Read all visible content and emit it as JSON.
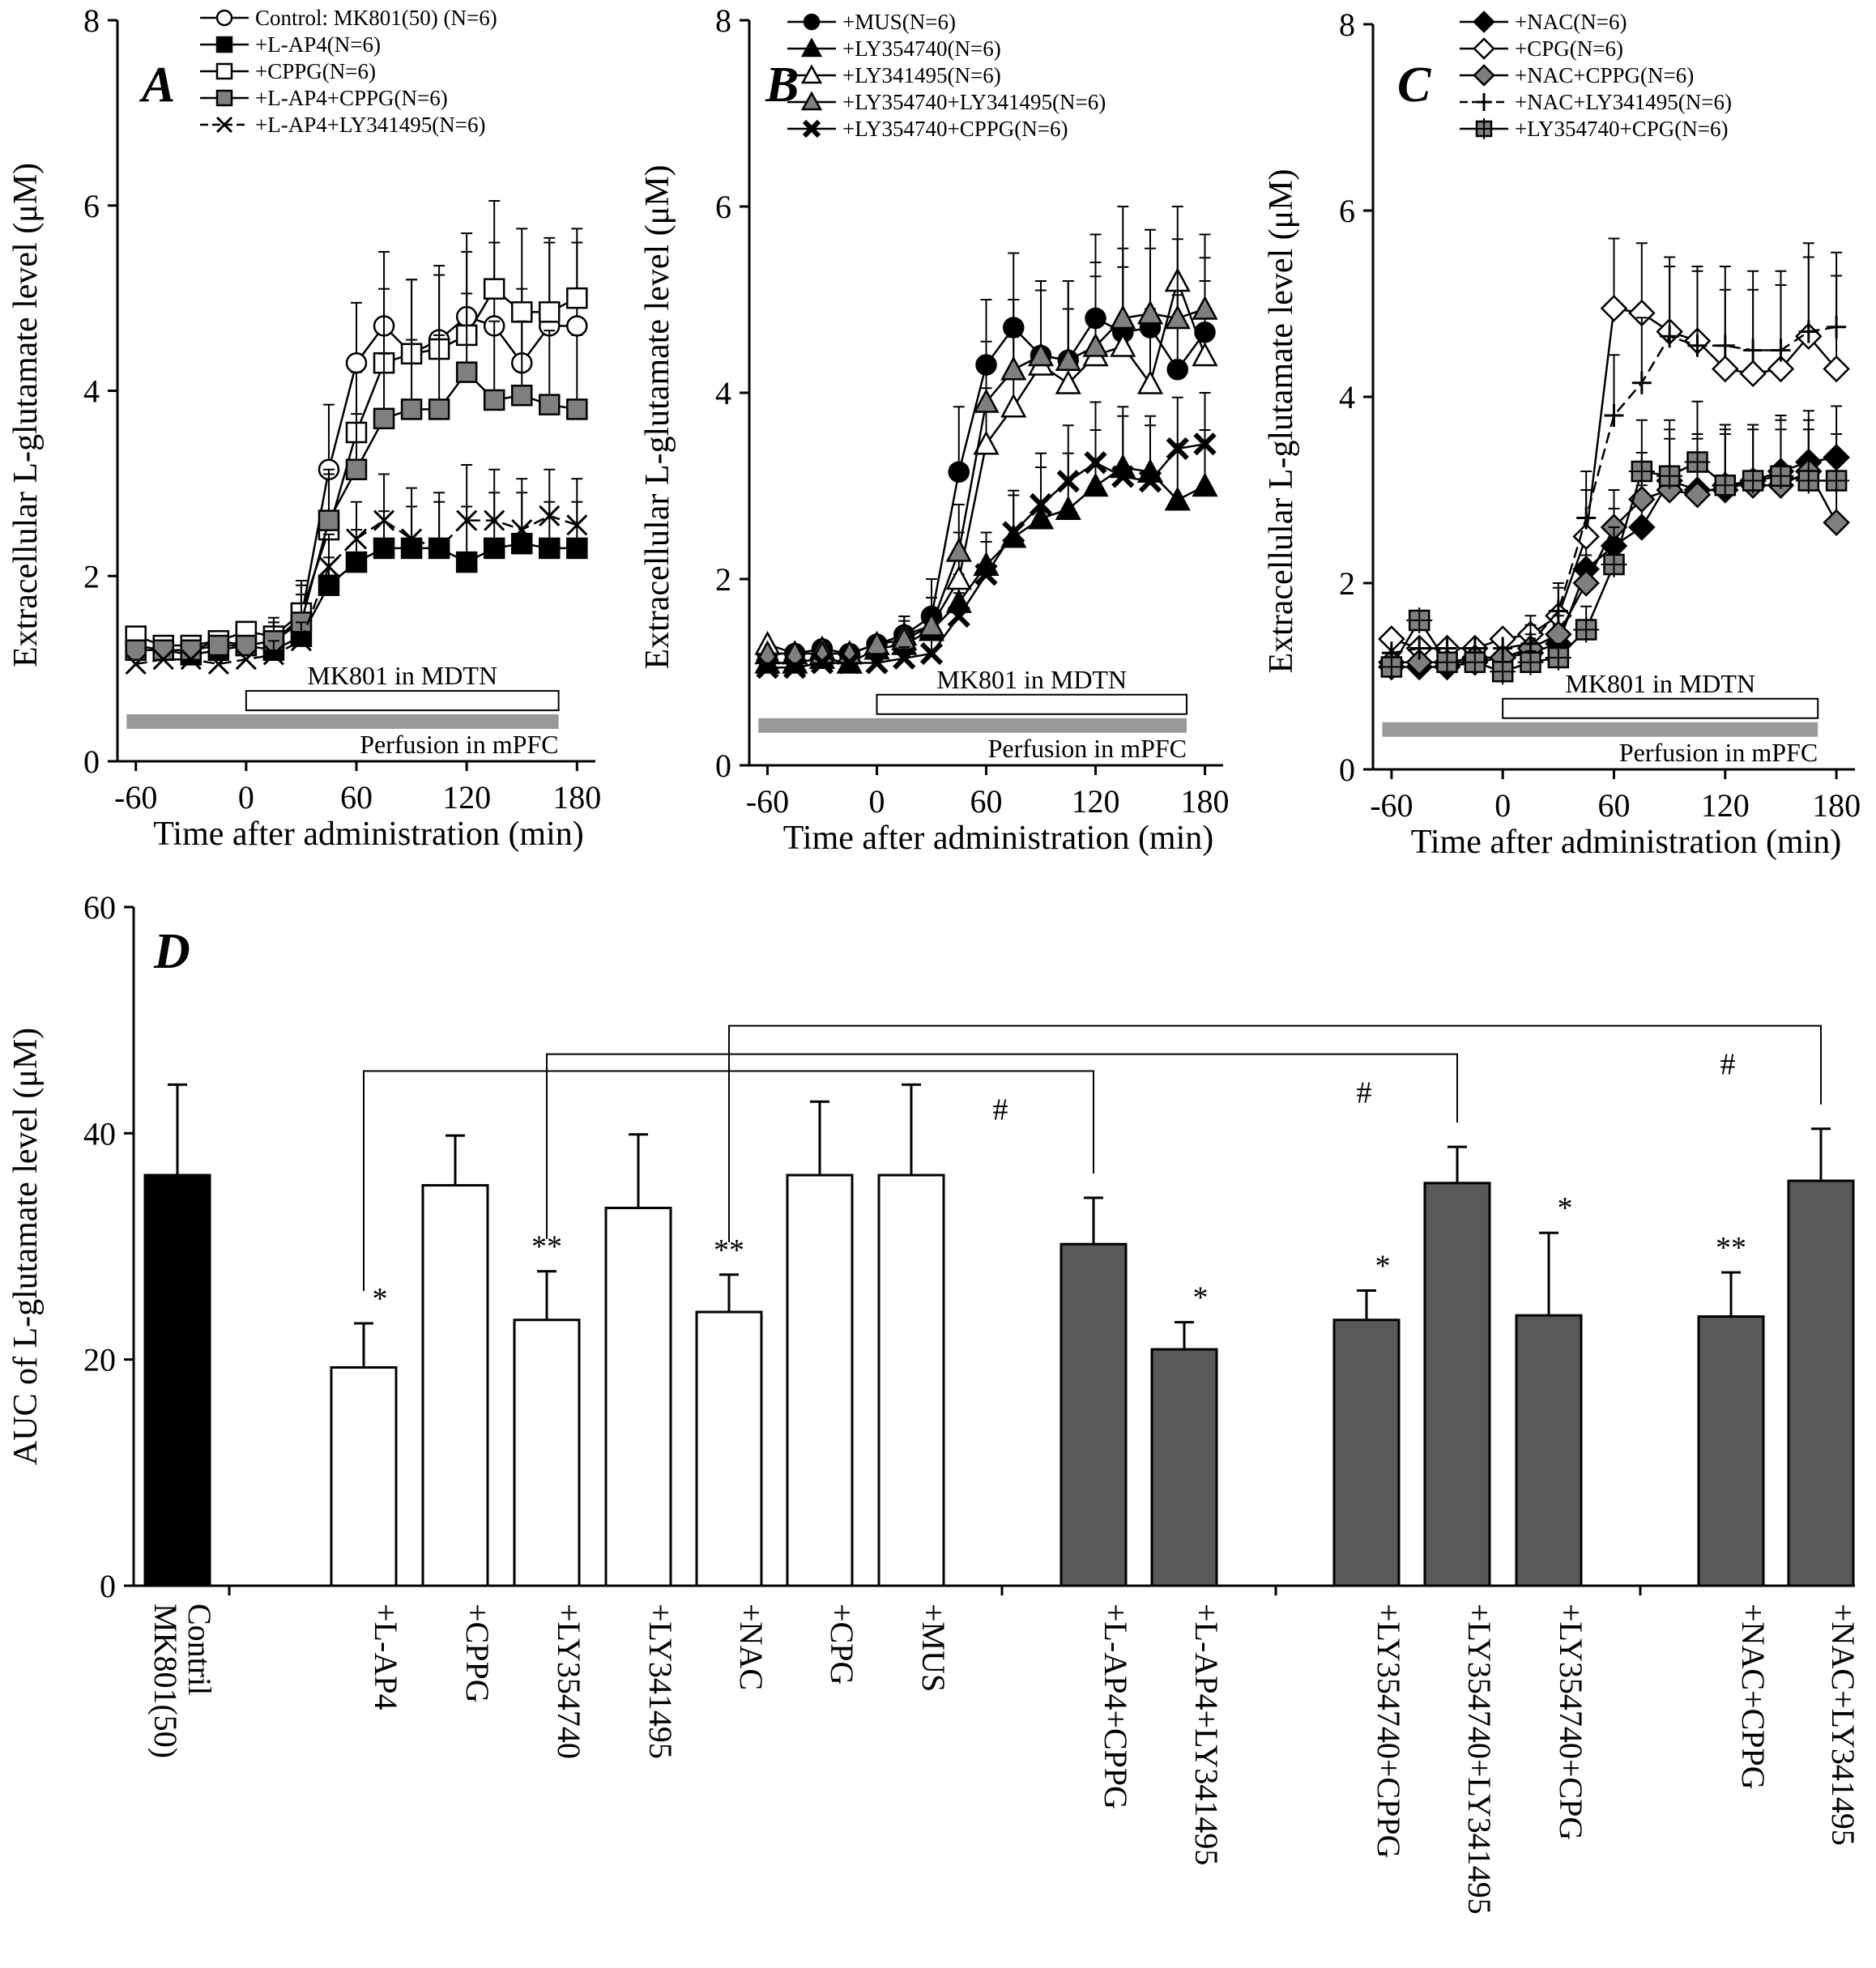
{
  "figure": {
    "panels": [
      "A",
      "B",
      "C",
      "D"
    ]
  },
  "chart_data": [
    {
      "type": "line",
      "panel": "A",
      "panel_label": "A",
      "xlabel": "Time after administration (min)",
      "ylabel": "Extracellular L-glutamate level (μM)",
      "xlim": [
        -70,
        190
      ],
      "ylim": [
        0,
        8
      ],
      "xticks": [
        -60,
        0,
        60,
        120,
        180
      ],
      "yticks": [
        0,
        2,
        4,
        6,
        8
      ],
      "bar_mk801": "MK801 in MDTN",
      "bar_perfusion": "Perfusion in mPFC",
      "x": [
        -60,
        -45,
        -30,
        -15,
        0,
        15,
        30,
        45,
        60,
        75,
        90,
        105,
        120,
        135,
        150,
        165,
        180
      ],
      "series": [
        {
          "name": "Control: MK801(50) (N=6)",
          "marker": "circle-open",
          "dash": "solid",
          "values": [
            1.25,
            1.2,
            1.2,
            1.3,
            1.25,
            1.3,
            1.55,
            3.15,
            4.3,
            4.7,
            4.4,
            4.55,
            4.8,
            4.7,
            4.3,
            4.7,
            4.7
          ],
          "errors": [
            0.15,
            0.12,
            0.12,
            0.15,
            0.15,
            0.2,
            0.4,
            0.7,
            0.65,
            0.8,
            0.8,
            0.8,
            0.9,
            0.9,
            0.8,
            0.9,
            0.9
          ]
        },
        {
          "name": "+L-AP4(N=6)",
          "marker": "square-filled",
          "dash": "solid",
          "values": [
            1.2,
            1.2,
            1.15,
            1.2,
            1.25,
            1.2,
            1.35,
            1.9,
            2.15,
            2.3,
            2.3,
            2.3,
            2.15,
            2.3,
            2.35,
            2.3,
            2.3
          ],
          "errors": [
            0.1,
            0.1,
            0.1,
            0.1,
            0.1,
            0.15,
            0.2,
            0.3,
            0.35,
            0.4,
            0.45,
            0.5,
            0.6,
            0.6,
            0.55,
            0.5,
            0.5
          ]
        },
        {
          "name": "+CPPG(N=6)",
          "marker": "square-open",
          "dash": "solid",
          "values": [
            1.35,
            1.25,
            1.25,
            1.3,
            1.4,
            1.35,
            1.6,
            2.5,
            3.55,
            4.3,
            4.4,
            4.45,
            4.6,
            5.1,
            4.85,
            4.85,
            5.0
          ],
          "errors": [
            0.15,
            0.12,
            0.12,
            0.15,
            0.15,
            0.2,
            0.3,
            0.6,
            0.65,
            0.8,
            0.8,
            0.8,
            0.9,
            0.95,
            0.9,
            0.8,
            0.75
          ]
        },
        {
          "name": "+L-AP4+CPPG(N=6)",
          "marker": "square-gray",
          "dash": "solid",
          "values": [
            1.2,
            1.2,
            1.2,
            1.25,
            1.25,
            1.3,
            1.5,
            2.6,
            3.15,
            3.7,
            3.8,
            3.8,
            4.2,
            3.9,
            3.95,
            3.85,
            3.8
          ],
          "errors": [
            0.12,
            0.1,
            0.1,
            0.12,
            0.15,
            0.2,
            0.3,
            0.55,
            0.6,
            0.7,
            0.75,
            0.8,
            0.85,
            0.85,
            0.8,
            0.8,
            0.8
          ]
        },
        {
          "name": "+L-AP4+LY341495(N=6)",
          "marker": "x",
          "dash": "dashed",
          "values": [
            1.05,
            1.1,
            1.1,
            1.05,
            1.1,
            1.15,
            1.3,
            2.1,
            2.4,
            2.6,
            2.4,
            2.3,
            2.6,
            2.6,
            2.5,
            2.65,
            2.55
          ],
          "errors": [
            0.1,
            0.1,
            0.1,
            0.1,
            0.1,
            0.15,
            0.2,
            0.35,
            0.4,
            0.5,
            0.55,
            0.6,
            0.6,
            0.55,
            0.55,
            0.5,
            0.5
          ]
        }
      ]
    },
    {
      "type": "line",
      "panel": "B",
      "panel_label": "B",
      "xlabel": "Time after administration (min)",
      "ylabel": "Extracellular L-glutamate level (μM)",
      "xlim": [
        -70,
        190
      ],
      "ylim": [
        0,
        8
      ],
      "xticks": [
        -60,
        0,
        60,
        120,
        180
      ],
      "yticks": [
        0,
        2,
        4,
        6,
        8
      ],
      "bar_mk801": "MK801 in MDTN",
      "bar_perfusion": "Perfusion in mPFC",
      "x": [
        -60,
        -45,
        -30,
        -15,
        0,
        15,
        30,
        45,
        60,
        75,
        90,
        105,
        120,
        135,
        150,
        165,
        180
      ],
      "series": [
        {
          "name": "+MUS(N=6)",
          "marker": "circle-filled",
          "dash": "solid",
          "values": [
            1.2,
            1.2,
            1.25,
            1.2,
            1.3,
            1.4,
            1.6,
            3.15,
            4.3,
            4.7,
            4.4,
            4.35,
            4.8,
            4.65,
            4.7,
            4.25,
            4.65
          ],
          "errors": [
            0.15,
            0.1,
            0.1,
            0.12,
            0.15,
            0.2,
            0.4,
            0.7,
            0.7,
            0.8,
            0.8,
            0.85,
            0.9,
            0.9,
            0.85,
            0.8,
            0.8
          ]
        },
        {
          "name": "+LY354740(N=6)",
          "marker": "triangle-filled",
          "dash": "solid",
          "values": [
            1.1,
            1.1,
            1.15,
            1.1,
            1.25,
            1.3,
            1.45,
            1.75,
            2.15,
            2.45,
            2.65,
            2.75,
            3.0,
            3.2,
            3.15,
            2.85,
            3.0
          ],
          "errors": [
            0.1,
            0.1,
            0.1,
            0.1,
            0.12,
            0.15,
            0.2,
            0.3,
            0.35,
            0.45,
            0.55,
            0.6,
            0.6,
            0.65,
            0.6,
            0.6,
            0.6
          ]
        },
        {
          "name": "+LY341495(N=6)",
          "marker": "triangle-open",
          "dash": "solid",
          "values": [
            1.3,
            1.2,
            1.25,
            1.2,
            1.3,
            1.4,
            1.5,
            2.0,
            3.45,
            3.85,
            4.3,
            4.1,
            4.4,
            4.5,
            4.1,
            5.2,
            4.4
          ],
          "errors": [
            0.15,
            0.12,
            0.12,
            0.12,
            0.15,
            0.2,
            0.3,
            0.5,
            0.6,
            0.75,
            0.8,
            0.8,
            0.85,
            0.85,
            0.8,
            0.8,
            0.8
          ]
        },
        {
          "name": "+LY354740+LY341495(N=6)",
          "marker": "triangle-gray",
          "dash": "solid",
          "values": [
            1.2,
            1.2,
            1.2,
            1.2,
            1.3,
            1.35,
            1.5,
            2.3,
            3.9,
            4.25,
            4.4,
            4.35,
            4.5,
            4.8,
            4.85,
            4.8,
            4.9
          ],
          "errors": [
            0.12,
            0.1,
            0.1,
            0.12,
            0.15,
            0.2,
            0.3,
            0.5,
            0.65,
            0.75,
            0.8,
            0.85,
            0.9,
            1.2,
            0.9,
            0.85,
            0.8
          ]
        },
        {
          "name": "+LY354740+CPPG(N=6)",
          "marker": "x-filled",
          "dash": "solid",
          "values": [
            1.05,
            1.05,
            1.1,
            1.1,
            1.1,
            1.15,
            1.2,
            1.6,
            2.05,
            2.5,
            2.8,
            3.05,
            3.25,
            3.1,
            3.05,
            3.4,
            3.45
          ],
          "errors": [
            0.1,
            0.1,
            0.1,
            0.1,
            0.1,
            0.12,
            0.15,
            0.25,
            0.35,
            0.45,
            0.55,
            0.6,
            0.65,
            0.65,
            0.6,
            0.55,
            0.55
          ]
        }
      ]
    },
    {
      "type": "line",
      "panel": "C",
      "panel_label": "C",
      "xlabel": "Time after administration (min)",
      "ylabel": "Extracellular L-glutamate level (μM)",
      "xlim": [
        -70,
        190
      ],
      "ylim": [
        0,
        8
      ],
      "xticks": [
        -60,
        0,
        60,
        120,
        180
      ],
      "yticks": [
        0,
        2,
        4,
        6,
        8
      ],
      "bar_mk801": "MK801 in MDTN",
      "bar_perfusion": "Perfusion in mPFC",
      "x": [
        -60,
        -45,
        -30,
        -15,
        0,
        15,
        30,
        45,
        60,
        75,
        90,
        105,
        120,
        135,
        150,
        165,
        180
      ],
      "series": [
        {
          "name": "+NAC(N=6)",
          "marker": "diamond-filled",
          "dash": "solid",
          "values": [
            1.1,
            1.1,
            1.1,
            1.15,
            1.2,
            1.25,
            1.35,
            2.15,
            2.4,
            2.6,
            3.1,
            3.0,
            3.0,
            3.1,
            3.2,
            3.3,
            3.35
          ],
          "errors": [
            0.1,
            0.1,
            0.1,
            0.1,
            0.12,
            0.15,
            0.2,
            0.3,
            0.4,
            0.45,
            0.55,
            0.6,
            0.6,
            0.6,
            0.6,
            0.55,
            0.55
          ]
        },
        {
          "name": "+CPG(N=6)",
          "marker": "diamond-open",
          "dash": "solid",
          "values": [
            1.4,
            1.3,
            1.3,
            1.3,
            1.4,
            1.45,
            1.65,
            2.5,
            4.95,
            4.9,
            4.7,
            4.6,
            4.3,
            4.25,
            4.3,
            4.65,
            4.3
          ],
          "errors": [
            0.15,
            0.12,
            0.12,
            0.12,
            0.15,
            0.2,
            0.3,
            0.5,
            0.75,
            0.75,
            0.8,
            0.8,
            0.85,
            0.9,
            0.9,
            1.0,
            1.0
          ]
        },
        {
          "name": "+NAC+CPPG(N=6)",
          "marker": "diamond-gray",
          "dash": "solid",
          "values": [
            1.15,
            1.15,
            1.15,
            1.2,
            1.2,
            1.3,
            1.45,
            2.0,
            2.6,
            2.9,
            3.0,
            2.95,
            3.05,
            3.05,
            3.05,
            3.2,
            2.65
          ],
          "errors": [
            0.1,
            0.1,
            0.1,
            0.1,
            0.12,
            0.15,
            0.2,
            0.3,
            0.4,
            0.5,
            0.55,
            0.6,
            0.6,
            0.6,
            0.6,
            0.55,
            0.5
          ]
        },
        {
          "name": "+NAC+LY341495(N=6)",
          "marker": "plus",
          "dash": "dashed",
          "values": [
            1.25,
            1.3,
            1.3,
            1.3,
            1.3,
            1.35,
            1.7,
            2.7,
            3.8,
            4.15,
            4.65,
            4.55,
            4.55,
            4.5,
            4.5,
            4.7,
            4.75
          ],
          "errors": [
            0.12,
            0.12,
            0.12,
            0.12,
            0.15,
            0.2,
            0.3,
            0.5,
            0.65,
            0.7,
            0.75,
            0.8,
            0.85,
            0.85,
            0.85,
            0.8,
            0.8
          ]
        },
        {
          "name": "+LY354740+CPG(N=6)",
          "marker": "square-gray-cross",
          "dash": "solid",
          "values": [
            1.1,
            1.6,
            1.15,
            1.15,
            1.05,
            1.15,
            1.2,
            1.5,
            2.2,
            3.2,
            3.15,
            3.3,
            3.05,
            3.1,
            3.15,
            3.1,
            3.1
          ],
          "errors": [
            0.1,
            0.2,
            0.1,
            0.1,
            0.1,
            0.12,
            0.15,
            0.25,
            0.4,
            0.55,
            0.6,
            0.65,
            0.65,
            0.6,
            0.6,
            0.55,
            0.5
          ]
        }
      ]
    },
    {
      "type": "bar",
      "panel": "D",
      "panel_label": "D",
      "ylabel": "AUC of L-glutamate level (μM)",
      "ylim": [
        0,
        60
      ],
      "yticks": [
        0,
        20,
        40,
        60
      ],
      "categories": [
        "MK801(50) Contril",
        "+L-AP4",
        "+CPPG",
        "+LY354740",
        "+LY341495",
        "+NAC",
        "+CPG",
        "+MUS",
        "+L-AP4+CPPG",
        "+L-AP4+LY341495",
        "+LY354740+CPPG",
        "+LY354740+LY341495",
        "+LY354740+CPG",
        "+NAC+CPPG",
        "+NAC+LY341495"
      ],
      "category_lines": [
        [
          "MK801(50)",
          "Contril"
        ],
        [
          "+L-AP4"
        ],
        [
          "+CPPG"
        ],
        [
          "+LY354740"
        ],
        [
          "+LY341495"
        ],
        [
          "+NAC"
        ],
        [
          "+CPG"
        ],
        [
          "+MUS"
        ],
        [
          "+L-AP4+CPPG"
        ],
        [
          "+L-AP4+LY341495"
        ],
        [
          "+LY354740+CPPG"
        ],
        [
          "+LY354740+LY341495"
        ],
        [
          "+LY354740+CPG"
        ],
        [
          "+NAC+CPPG"
        ],
        [
          "+NAC+LY341495"
        ]
      ],
      "values": [
        36.3,
        19.3,
        35.4,
        23.5,
        33.4,
        24.2,
        36.3,
        36.3,
        30.2,
        20.9,
        23.5,
        35.6,
        23.9,
        23.8,
        35.8
      ],
      "errors": [
        8.0,
        3.9,
        4.4,
        4.3,
        6.5,
        3.3,
        6.5,
        8.0,
        4.1,
        2.4,
        2.6,
        3.2,
        7.3,
        3.9,
        4.6
      ],
      "fills": [
        "black",
        "white",
        "white",
        "white",
        "white",
        "white",
        "white",
        "white",
        "gray",
        "gray",
        "gray",
        "gray",
        "gray",
        "gray",
        "gray"
      ],
      "significance": [
        "",
        "*",
        "",
        "**",
        "",
        "**",
        "",
        "",
        "",
        "*",
        "*",
        "",
        "*",
        "**",
        ""
      ],
      "brackets": [
        {
          "from": 1,
          "to": 8,
          "level": 45.5,
          "label": "#"
        },
        {
          "from": 3,
          "to": 11,
          "level": 47.0,
          "label": "#"
        },
        {
          "from": 5,
          "to": 14,
          "level": 49.5,
          "label": "#"
        }
      ]
    }
  ]
}
